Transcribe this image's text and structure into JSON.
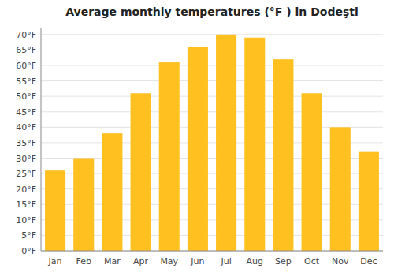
{
  "chart_data": {
    "type": "bar",
    "title": "Average monthly temperatures (°F ) in Dodeşti",
    "categories": [
      "Jan",
      "Feb",
      "Mar",
      "Apr",
      "May",
      "Jun",
      "Jul",
      "Aug",
      "Sep",
      "Oct",
      "Nov",
      "Dec"
    ],
    "values": [
      26,
      30,
      38,
      51,
      61,
      66,
      70,
      69,
      62,
      51,
      40,
      32
    ],
    "color": "#FFC020",
    "ylim": [
      0,
      72
    ],
    "yticks": [
      {
        "value": 0,
        "label": "0°F"
      },
      {
        "value": 5,
        "label": "5°F"
      },
      {
        "value": 10,
        "label": "10°F"
      },
      {
        "value": 15,
        "label": "15°F"
      },
      {
        "value": 20,
        "label": "20°F"
      },
      {
        "value": 25,
        "label": "25°F"
      },
      {
        "value": 30,
        "label": "30°F"
      },
      {
        "value": 35,
        "label": "35°F"
      },
      {
        "value": 40,
        "label": "40°F"
      },
      {
        "value": 45,
        "label": "45°F"
      },
      {
        "value": 50,
        "label": "50°F"
      },
      {
        "value": 55,
        "label": "55°F"
      },
      {
        "value": 60,
        "label": "60°F"
      },
      {
        "value": 65,
        "label": "65°F"
      },
      {
        "value": 70,
        "label": "70°F"
      }
    ],
    "grid": true
  }
}
